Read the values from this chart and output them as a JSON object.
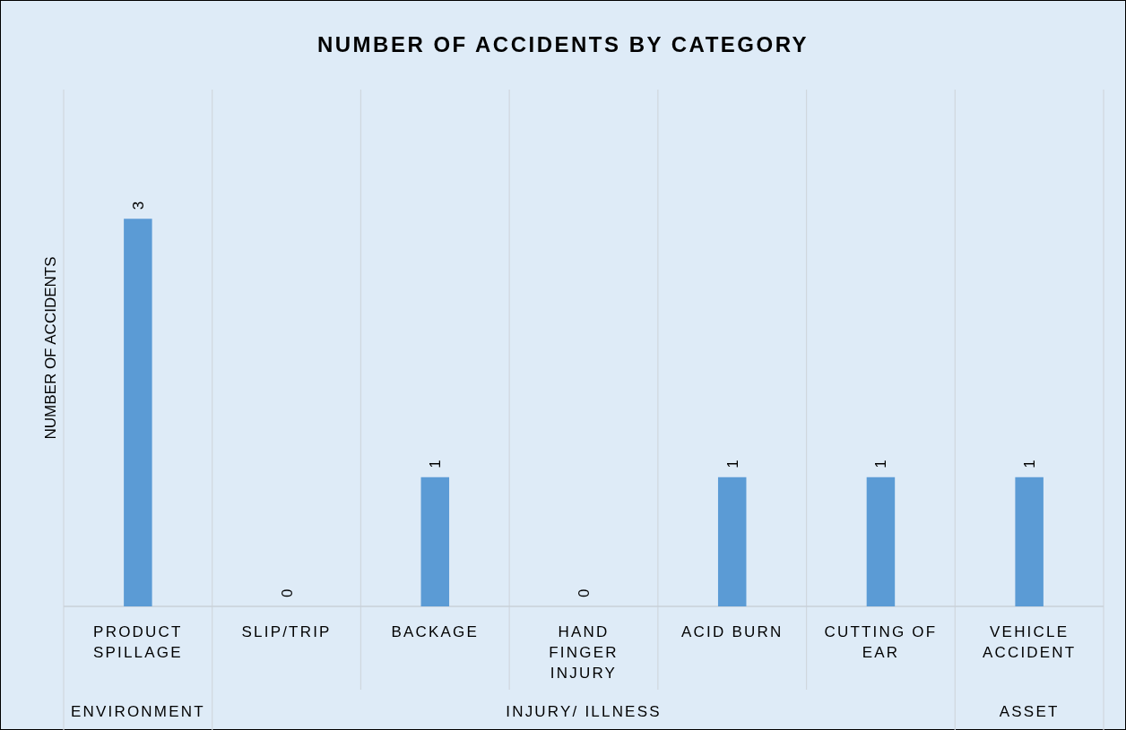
{
  "chart_data": {
    "type": "bar",
    "title": "NUMBER OF ACCIDENTS BY CATEGORY",
    "ylabel": "NUMBER OF ACCIDENTS",
    "categories": [
      "PRODUCT SPILLAGE",
      "SLIP/TRIP",
      "BACKAGE",
      "HAND FINGER INJURY",
      "ACID BURN",
      "CUTTING OF EAR",
      "VEHICLE ACCIDENT"
    ],
    "values": [
      3,
      0,
      1,
      0,
      1,
      1,
      1
    ],
    "color": "#5b9bd5",
    "ylim": [
      0,
      4
    ],
    "data_labels": true,
    "tick_labels": "x",
    "annotations": [
      "ENVIRONMENT",
      "INJURY/ ILLNESS",
      "ASSET"
    ]
  }
}
